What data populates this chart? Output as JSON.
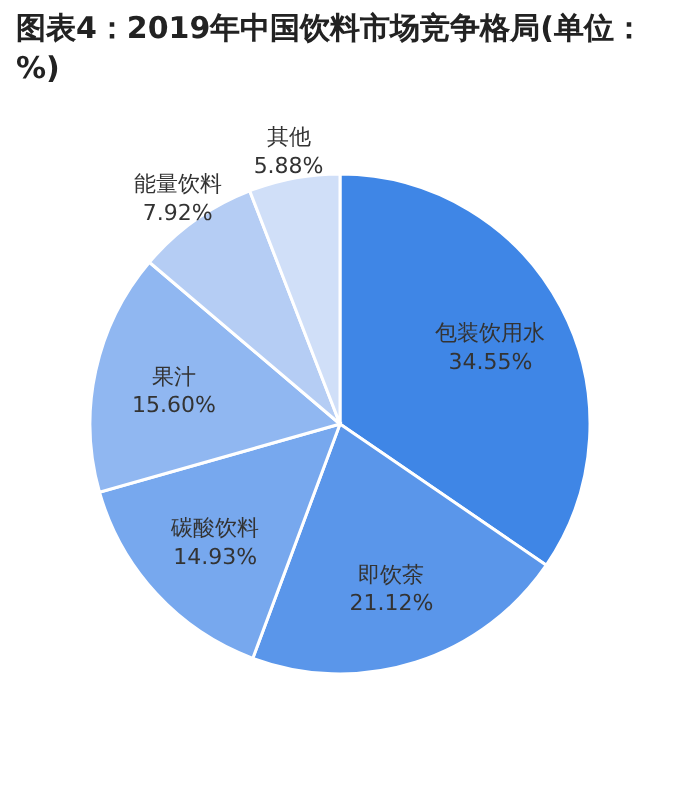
{
  "chart_data": {
    "type": "pie",
    "title": "图表4：2019年中国饮料市场竞争格局(单位：%)",
    "categories": [
      "包装饮用水",
      "即饮茶",
      "碳酸饮料",
      "果汁",
      "能量饮料",
      "其他"
    ],
    "values": [
      34.55,
      21.12,
      14.93,
      15.6,
      7.92,
      5.88
    ],
    "colors": [
      "#3f86e6",
      "#5a96ea",
      "#77a8ee",
      "#90b7f1",
      "#b5cdf4",
      "#d0dff8"
    ],
    "value_labels": [
      "34.55%",
      "21.12%",
      "14.93%",
      "15.60%",
      "7.92%",
      "5.88%"
    ],
    "legend": false
  }
}
